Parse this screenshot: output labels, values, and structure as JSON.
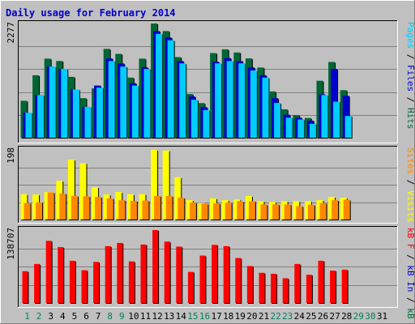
{
  "chart_data": {
    "type": "bar",
    "title": "Daily usage for February 2014",
    "days": [
      "1",
      "2",
      "3",
      "4",
      "5",
      "6",
      "7",
      "8",
      "9",
      "10",
      "11",
      "12",
      "13",
      "14",
      "15",
      "16",
      "17",
      "18",
      "19",
      "20",
      "21",
      "22",
      "23",
      "24",
      "25",
      "26",
      "27",
      "28",
      "29",
      "30",
      "31"
    ],
    "weekend_days": [
      1,
      2,
      8,
      9,
      15,
      16,
      22,
      23,
      29,
      30
    ],
    "no_data_days": [
      29,
      30,
      31
    ],
    "colors": {
      "hits": "#006633",
      "files": "#0000cc",
      "pages": "#00ccff",
      "visits": "#ffff00",
      "sites": "#ff8800",
      "kbf": "#ff0000",
      "weekday_label": "#000000",
      "weekend_label": "#00805c",
      "frame_bg": "#c0c0c0",
      "title": "#0000cc"
    },
    "panels": [
      {
        "id": "hits_files_pages",
        "max_label": "2277",
        "ymax": 2277,
        "axis_label_parts": [
          {
            "text": "Pages",
            "color": "#00ccff"
          },
          {
            "text": " / ",
            "color": "#000000"
          },
          {
            "text": "Files",
            "color": "#0000cc"
          },
          {
            "text": " / ",
            "color": "#000000"
          },
          {
            "text": "Hits",
            "color": "#006633"
          }
        ],
        "series": [
          {
            "key": "hits",
            "values": [
              736,
              1245,
              1576,
              1529,
              1213,
              789,
              983,
              1771,
              1671,
              1198,
              1576,
              2277,
              2126,
              1607,
              871,
              690,
              1687,
              1762,
              1699,
              1581,
              1399,
              922,
              566,
              451,
              393,
              1135,
              1510,
              948
            ]
          },
          {
            "key": "files",
            "values": [
              498,
              851,
              1418,
              1371,
              961,
              615,
              1040,
              1581,
              1481,
              1087,
              1403,
              2126,
              1999,
              1529,
              821,
              611,
              1514,
              1589,
              1529,
              1403,
              1246,
              788,
              459,
              399,
              341,
              865,
              1371,
              836
            ]
          },
          {
            "key": "pages",
            "values": [
              498,
              851,
              1418,
              1371,
              961,
              615,
              998,
              1529,
              1418,
              1040,
              1371,
              2071,
              1943,
              1482,
              756,
              552,
              1482,
              1529,
              1482,
              1340,
              1198,
              693,
              399,
              363,
              278,
              851,
              719,
              434
            ]
          }
        ]
      },
      {
        "id": "visits_sites",
        "max_label": "198",
        "ymax": 198,
        "axis_label_parts": [
          {
            "text": "Sites",
            "color": "#ff8800"
          },
          {
            "text": " / ",
            "color": "#000000"
          },
          {
            "text": "Visits",
            "color": "#ffff00"
          }
        ],
        "series": [
          {
            "key": "visits",
            "values": [
              72,
              71,
              78,
              110,
              170,
              160,
              92,
              71,
              78,
              72,
              72,
              198,
              196,
              120,
              55,
              47,
              60,
              55,
              57,
              67,
              52,
              50,
              52,
              52,
              52,
              55,
              64,
              62
            ]
          },
          {
            "key": "sites",
            "values": [
              47,
              49,
              77,
              74,
              67,
              66,
              64,
              60,
              55,
              53,
              54,
              67,
              67,
              62,
              48,
              45,
              46,
              48,
              52,
              52,
              43,
              43,
              43,
              38,
              42,
              47,
              55,
              56
            ]
          }
        ]
      },
      {
        "id": "kbf",
        "max_label": "138707",
        "ymax": 138707,
        "axis_label_parts": [
          {
            "text": "kB F",
            "color": "#ff0000"
          },
          {
            "text": " / ",
            "color": "#000000"
          },
          {
            "text": "kB In",
            "color": "#0000cc"
          },
          {
            "text": " / ",
            "color": "#000000"
          },
          {
            "text": "kB Out",
            "color": "#006633"
          }
        ],
        "series": [
          {
            "key": "kbf",
            "values": [
              60390,
              74148,
              118172,
              106246,
              80269,
              62224,
              78039,
              108110,
              114224,
              79048,
              111166,
              138707,
              116741,
              107162,
              59168,
              90140,
              110554,
              108110,
              85491,
              70209,
              57365,
              55532,
              46974,
              74148,
              53698,
              80269,
              61613,
              63447
            ]
          }
        ]
      }
    ]
  }
}
